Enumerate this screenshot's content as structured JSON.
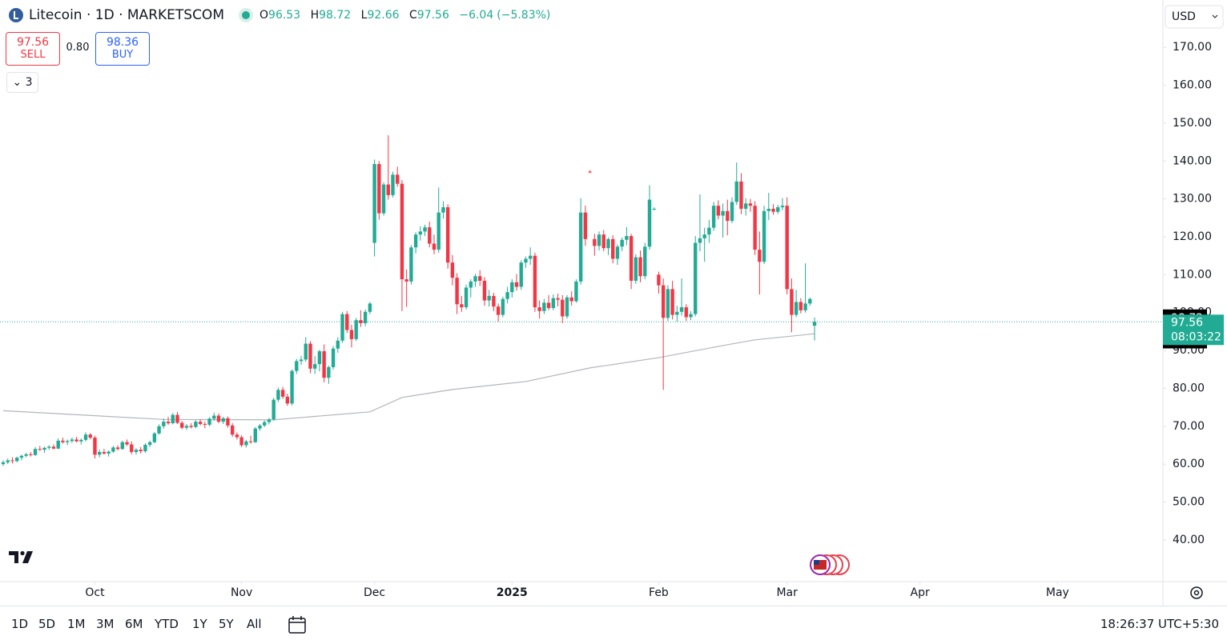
{
  "header": {
    "symbol": "Litecoin · 1D · MARKETSCOM",
    "ohlc_letters": [
      "O",
      "H",
      "L",
      "C"
    ],
    "change": "−6.04",
    "change_pct": "(−5.83%)"
  },
  "trade": {
    "sell_label": "SELL",
    "spread": "0.80",
    "buy_price": "98.36",
    "buy_label": "BUY"
  },
  "indicators_count": "3",
  "currency": "USD",
  "chart_data": {
    "type": "candlestick",
    "up_color": "#22ab94",
    "down_color": "#f23645",
    "xlim": [
      -0.7,
      253
    ],
    "xticks": [
      {
        "value": 20,
        "label": "Oct"
      },
      {
        "value": 52,
        "label": "Nov"
      },
      {
        "value": 81,
        "label": "Dec"
      },
      {
        "value": 111,
        "label": "2025"
      },
      {
        "value": 143,
        "label": "Feb"
      },
      {
        "value": 171,
        "label": "Mar"
      },
      {
        "value": 200,
        "label": "Apr"
      },
      {
        "value": 230,
        "label": "May"
      }
    ],
    "ylim": [
      29,
      182.5
    ],
    "yticks": [
      {
        "value": 40,
        "label": "40.00"
      },
      {
        "value": 50,
        "label": "50.00"
      },
      {
        "value": 60,
        "label": "60.00"
      },
      {
        "value": 70,
        "label": "70.00"
      },
      {
        "value": 80,
        "label": "80.00"
      },
      {
        "value": 90,
        "label": "90.00"
      },
      {
        "value": 100,
        "label": "100.00"
      },
      {
        "value": 110,
        "label": "110.00"
      },
      {
        "value": 120,
        "label": "120.00"
      },
      {
        "value": 130,
        "label": "130.00"
      },
      {
        "value": 140,
        "label": "140.00"
      },
      {
        "value": 150,
        "label": "150.00"
      },
      {
        "value": 160,
        "label": "160.00"
      },
      {
        "value": 170,
        "label": "170.00"
      }
    ],
    "countdown": "08:03:22",
    "moving_average": {
      "color": "#b2b5be",
      "x": [
        0,
        35,
        59,
        80,
        87,
        98,
        114,
        128,
        143,
        157,
        164,
        177
      ],
      "values": [
        74.1,
        71.8,
        71.7,
        73.8,
        77.6,
        79.7,
        81.8,
        85.4,
        88.1,
        91.3,
        92.8,
        94.42
      ]
    },
    "ohlc": [
      [
        60,
        61,
        59.5,
        60.5
      ],
      [
        60.5,
        61.5,
        60,
        61
      ],
      [
        61,
        61.8,
        60.2,
        60.8
      ],
      [
        60.8,
        62,
        60.5,
        61.7
      ],
      [
        61.7,
        62.5,
        61,
        62.2
      ],
      [
        62.2,
        63,
        61.8,
        62.6
      ],
      [
        62.6,
        63.2,
        62,
        62.4
      ],
      [
        62.4,
        64.5,
        62.2,
        64
      ],
      [
        64,
        64.8,
        63.5,
        63.8
      ],
      [
        63.8,
        64.6,
        63,
        64.3
      ],
      [
        64.3,
        65,
        63.8,
        64.6
      ],
      [
        64.6,
        65.2,
        63.9,
        64.1
      ],
      [
        64.1,
        66.8,
        64,
        66.2
      ],
      [
        66.2,
        67,
        65.4,
        65.8
      ],
      [
        65.8,
        66.5,
        65,
        66.1
      ],
      [
        66.1,
        67,
        65.6,
        66.5
      ],
      [
        66.5,
        67.2,
        65.8,
        66
      ],
      [
        66,
        66.8,
        65.2,
        66.4
      ],
      [
        66.4,
        68.4,
        66,
        67.8
      ],
      [
        67.8,
        68.2,
        66.5,
        67
      ],
      [
        67,
        67.5,
        61.5,
        62.5
      ],
      [
        62.5,
        63.8,
        61.8,
        63.2
      ],
      [
        63.2,
        64,
        62.5,
        62.8
      ],
      [
        62.8,
        63.6,
        62,
        63.3
      ],
      [
        63.3,
        64.8,
        63,
        64.4
      ],
      [
        64.4,
        65,
        63.6,
        64
      ],
      [
        64,
        66.2,
        63.8,
        65.8
      ],
      [
        65.8,
        66.5,
        64.8,
        65.2
      ],
      [
        65.2,
        66,
        62.6,
        63.2
      ],
      [
        63.2,
        64.2,
        62.5,
        63.8
      ],
      [
        63.8,
        64.5,
        62.8,
        63.4
      ],
      [
        63.4,
        65.5,
        63,
        65.1
      ],
      [
        65.1,
        66.2,
        64.5,
        65.8
      ],
      [
        65.8,
        68.5,
        65.5,
        68.1
      ],
      [
        68.1,
        70.5,
        67.8,
        70
      ],
      [
        70,
        72,
        69.4,
        71.2
      ],
      [
        71.2,
        72.5,
        70.4,
        70.8
      ],
      [
        70.8,
        73.5,
        70.5,
        73
      ],
      [
        73,
        73.8,
        70.6,
        70.9
      ],
      [
        70.9,
        71.4,
        69.2,
        69.6
      ],
      [
        69.6,
        70.6,
        69,
        70.1
      ],
      [
        70.1,
        70.8,
        69.4,
        69.8
      ],
      [
        69.8,
        71.6,
        69.5,
        71.2
      ],
      [
        71.2,
        71.8,
        70.2,
        70.6
      ],
      [
        70.6,
        71.2,
        69.5,
        70.4
      ],
      [
        70.4,
        72.4,
        70,
        72
      ],
      [
        72,
        73.6,
        71.4,
        72.8
      ],
      [
        72.8,
        73.4,
        70.8,
        71.2
      ],
      [
        71.2,
        72.5,
        70.6,
        72.1
      ],
      [
        72.1,
        72.6,
        69.6,
        70.2
      ],
      [
        70.2,
        70.8,
        67.2,
        67.8
      ],
      [
        67.8,
        68.4,
        66.5,
        67.1
      ],
      [
        67.1,
        67.6,
        64.5,
        65
      ],
      [
        65,
        66.4,
        64.4,
        66
      ],
      [
        66,
        67.5,
        65.4,
        65.8
      ],
      [
        65.8,
        69.8,
        65.6,
        69.4
      ],
      [
        69.4,
        70.6,
        68.8,
        70.2
      ],
      [
        70.2,
        71.5,
        69.8,
        71.1
      ],
      [
        71.1,
        72.2,
        70.5,
        71.8
      ],
      [
        71.8,
        77.5,
        71.5,
        77
      ],
      [
        77,
        80.2,
        76.4,
        79.6
      ],
      [
        79.6,
        80.4,
        77.2,
        77.8
      ],
      [
        77.8,
        78.6,
        75.4,
        76
      ],
      [
        76,
        85,
        75.5,
        84.6
      ],
      [
        84.6,
        87.8,
        83.8,
        87.2
      ],
      [
        87.2,
        88.6,
        86.2,
        87.6
      ],
      [
        87.6,
        93.5,
        87,
        91.8
      ],
      [
        91.8,
        92.5,
        84,
        85.2
      ],
      [
        85.2,
        88.5,
        83.8,
        86.4
      ],
      [
        86.4,
        90.2,
        84.5,
        89.8
      ],
      [
        89.8,
        91.6,
        81.6,
        82.8
      ],
      [
        82.8,
        86,
        81.2,
        85.6
      ],
      [
        85.6,
        91.2,
        85,
        90.5
      ],
      [
        90.5,
        93.5,
        89.4,
        92.6
      ],
      [
        92.6,
        100.2,
        92,
        99.6
      ],
      [
        99.6,
        100.4,
        94.6,
        95.4
      ],
      [
        95.4,
        96.8,
        90.8,
        93
      ],
      [
        93,
        98.6,
        92.5,
        98
      ],
      [
        98,
        100.6,
        96.2,
        97.2
      ],
      [
        97.2,
        100.8,
        96.4,
        100.2
      ],
      [
        100.2,
        102.8,
        99.6,
        102.4
      ],
      [
        118.4,
        140.4,
        114.8,
        139.2
      ],
      [
        139.2,
        140,
        124.5,
        126.2
      ],
      [
        126.2,
        134.4,
        125.6,
        133.8
      ],
      [
        133.8,
        146.8,
        129.8,
        131
      ],
      [
        131,
        137.2,
        130.4,
        136.4
      ],
      [
        136.4,
        138.5,
        133.2,
        134
      ],
      [
        134,
        135,
        100.4,
        108.8
      ],
      [
        108.8,
        111.4,
        101.5,
        108.2
      ],
      [
        108.2,
        117.8,
        107.4,
        117.2
      ],
      [
        117.2,
        121.2,
        115.6,
        120.6
      ],
      [
        120.6,
        122.8,
        119,
        121.4
      ],
      [
        121.4,
        123.2,
        120.2,
        122.5
      ],
      [
        122.5,
        124,
        117.2,
        118.2
      ],
      [
        118.2,
        120.6,
        115.4,
        116.6
      ],
      [
        116.6,
        133,
        115.8,
        126.4
      ],
      [
        126.4,
        129.4,
        124.8,
        127.8
      ],
      [
        127.8,
        128.6,
        111.6,
        113.2
      ],
      [
        113.2,
        115.2,
        107.2,
        109.2
      ],
      [
        109.2,
        110.4,
        99.6,
        102.2
      ],
      [
        102.2,
        104.4,
        100.2,
        101.4
      ],
      [
        101.4,
        107.4,
        100.8,
        106.6
      ],
      [
        106.6,
        108.8,
        104,
        108.2
      ],
      [
        108.2,
        110.2,
        106.8,
        109.6
      ],
      [
        109.6,
        111.2,
        107,
        108.4
      ],
      [
        108.4,
        109.4,
        101.8,
        103.2
      ],
      [
        103.2,
        106,
        101.6,
        104.4
      ],
      [
        104.4,
        105.2,
        100.4,
        101.6
      ],
      [
        101.6,
        102.4,
        97.6,
        99.4
      ],
      [
        99.4,
        104.2,
        98.8,
        103.6
      ],
      [
        103.6,
        106.8,
        102.4,
        105.4
      ],
      [
        105.4,
        108.8,
        104,
        108
      ],
      [
        108,
        110.2,
        105.8,
        106.8
      ],
      [
        106.8,
        113.8,
        106,
        113.2
      ],
      [
        113.2,
        114.8,
        111.8,
        114.2
      ],
      [
        114.2,
        117.2,
        112.6,
        115
      ],
      [
        115,
        115.8,
        100.2,
        101.4
      ],
      [
        101.4,
        103.2,
        98.4,
        100.4
      ],
      [
        100.4,
        103.6,
        99.6,
        102.6
      ],
      [
        102.6,
        104.6,
        100.6,
        101.2
      ],
      [
        101.2,
        104.8,
        100.6,
        103.8
      ],
      [
        103.8,
        105,
        101.6,
        103.4
      ],
      [
        103.4,
        104.6,
        97.2,
        99
      ],
      [
        99,
        104.6,
        98.4,
        104
      ],
      [
        104,
        105.6,
        101.8,
        103
      ],
      [
        103,
        108.8,
        102.6,
        108.2
      ],
      [
        108.2,
        130.2,
        107.4,
        126.4
      ],
      [
        126.4,
        128.2,
        117.6,
        119.4
      ],
      [
        137.2,
        137.6,
        136.8,
        137
      ],
      [
        119.4,
        120.8,
        115,
        117.6
      ],
      [
        117.6,
        121.4,
        116.4,
        120.6
      ],
      [
        120.6,
        121.8,
        116.2,
        117
      ],
      [
        117,
        119.8,
        115.2,
        119.4
      ],
      [
        119.4,
        120.4,
        113,
        114.2
      ],
      [
        114.2,
        118,
        112.6,
        117.4
      ],
      [
        117.4,
        119.8,
        116.2,
        119.2
      ],
      [
        119.2,
        122.6,
        117.8,
        120.2
      ],
      [
        120.2,
        120.8,
        106.2,
        108.4
      ],
      [
        108.4,
        115.4,
        107.6,
        114.6
      ],
      [
        114.6,
        116.4,
        108,
        109.6
      ],
      [
        109.6,
        118.4,
        108.8,
        117.4
      ],
      [
        117.4,
        133.6,
        116.6,
        129.8
      ],
      [
        127.4,
        127.8,
        127,
        127.4
      ],
      [
        110,
        110.8,
        105,
        107.2
      ],
      [
        107.2,
        109,
        79.6,
        98.6
      ],
      [
        98.6,
        107.2,
        97.8,
        106.2
      ],
      [
        106.2,
        108.4,
        98.2,
        99.4
      ],
      [
        99.4,
        101.8,
        97.6,
        100.2
      ],
      [
        100.2,
        109,
        99.2,
        101.4
      ],
      [
        101.4,
        102.2,
        97.8,
        98.8
      ],
      [
        98.8,
        100.4,
        98,
        99.6
      ],
      [
        99.6,
        120.2,
        99,
        118.4
      ],
      [
        118.4,
        131.2,
        116.2,
        119.6
      ],
      [
        119.6,
        122.4,
        113.4,
        120.6
      ],
      [
        120.6,
        124.4,
        118.4,
        122.4
      ],
      [
        122.4,
        129.2,
        121.6,
        128.2
      ],
      [
        128.2,
        129.6,
        124.6,
        125.6
      ],
      [
        125.6,
        128.8,
        119.8,
        126.8
      ],
      [
        126.8,
        129.8,
        120.4,
        124.2
      ],
      [
        124.2,
        130.4,
        123.6,
        129.2
      ],
      [
        129.2,
        139.6,
        128.4,
        134.6
      ],
      [
        134.6,
        136.8,
        126,
        127.4
      ],
      [
        127.4,
        130.2,
        125.6,
        128.8
      ],
      [
        128.8,
        130,
        126.6,
        128.2
      ],
      [
        128.2,
        129.4,
        115.2,
        116.6
      ],
      [
        116.6,
        121.4,
        104.8,
        113.4
      ],
      [
        113.4,
        128.2,
        112.8,
        126.8
      ],
      [
        126.8,
        131.6,
        124.4,
        127.4
      ],
      [
        127.4,
        128.6,
        125.8,
        126.6
      ],
      [
        126.6,
        128.4,
        126,
        127.8
      ],
      [
        127.8,
        130.2,
        127,
        128.2
      ],
      [
        128.2,
        130.4,
        104.8,
        106.2
      ],
      [
        106.2,
        109,
        94.8,
        99.4
      ],
      [
        99.4,
        106,
        98.8,
        102.8
      ],
      [
        102.8,
        103.8,
        99.8,
        100.6
      ],
      [
        100.6,
        113,
        100,
        102.4
      ],
      [
        102.4,
        104,
        101.8,
        103.6
      ],
      [
        96.53,
        98.72,
        92.66,
        97.56
      ]
    ]
  },
  "toolbar": {
    "ranges": [
      "1D",
      "5D",
      "1M",
      "3M",
      "6M",
      "YTD",
      "1Y",
      "5Y",
      "All"
    ],
    "clock": "18:26:37 UTC+5:30"
  }
}
